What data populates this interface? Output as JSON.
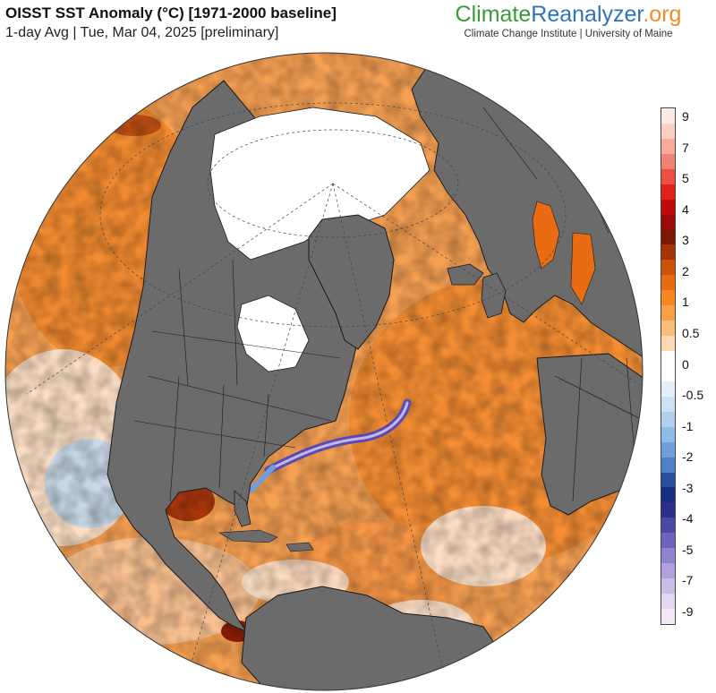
{
  "header": {
    "title": "OISST SST Anomaly (°C) [1971-2000 baseline]",
    "subtitle": "1-day Avg | Tue, Mar 04, 2025 [preliminary]"
  },
  "brand": {
    "name_part1": "Climate",
    "name_part2": "Reanalyzer",
    "name_part3": ".org",
    "affiliation": "Climate Change Institute | University of Maine",
    "colors": {
      "climate": "#3a9a3a",
      "reanalyzer": "#2f75b5",
      "org": "#f28c28"
    }
  },
  "map": {
    "projection": "orthographic (Northern Hemisphere / North Atlantic view)",
    "colors": {
      "land": "#6b6b6b",
      "sea_ice": "#ffffff",
      "border_lines": "#1a1a1a",
      "graticule": "#444444"
    }
  },
  "colorbar": {
    "labels": [
      "9",
      "7",
      "5",
      "4",
      "3",
      "2",
      "1",
      "0.5",
      "0",
      "-0.5",
      "-1",
      "-2",
      "-3",
      "-4",
      "-5",
      "-7",
      "-9"
    ],
    "colors_top_to_bottom": [
      "#fde9e4",
      "#fbcfc2",
      "#f8ab98",
      "#f28274",
      "#ee4f44",
      "#e3201a",
      "#c00a0a",
      "#9a0a06",
      "#7a1804",
      "#a63407",
      "#cc5109",
      "#ea6c12",
      "#f8861e",
      "#f9a046",
      "#fbbd79",
      "#fdd9b3",
      "#ffffff",
      "#ffffff",
      "#e3effa",
      "#cce1f4",
      "#b0d0ee",
      "#8fbce6",
      "#6f9fda",
      "#4f7fc8",
      "#2a4ea0",
      "#142f83",
      "#2c2e8c",
      "#4a49a8",
      "#6d64bf",
      "#8f83cf",
      "#b19fdf",
      "#cbbce9",
      "#e2d6f1",
      "#f3e6f5"
    ]
  }
}
